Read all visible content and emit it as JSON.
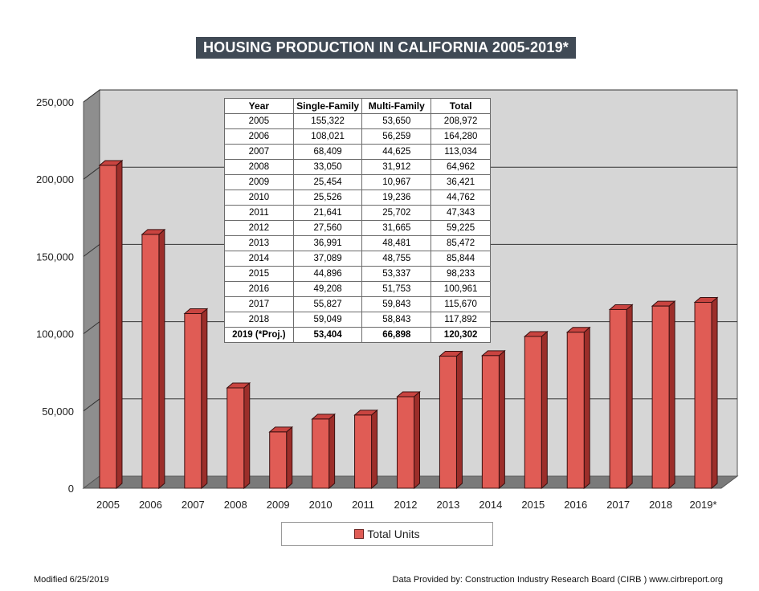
{
  "title": "HOUSING PRODUCTION IN CALIFORNIA 2005-2019*",
  "chart_data": {
    "type": "bar",
    "title": "HOUSING PRODUCTION IN CALIFORNIA 2005-2019*",
    "categories": [
      "2005",
      "2006",
      "2007",
      "2008",
      "2009",
      "2010",
      "2011",
      "2012",
      "2013",
      "2014",
      "2015",
      "2016",
      "2017",
      "2018",
      "2019*"
    ],
    "series": [
      {
        "name": "Total Units",
        "values": [
          208972,
          164280,
          113034,
          64962,
          36421,
          44762,
          47343,
          59225,
          85472,
          85844,
          98233,
          100961,
          115670,
          117892,
          120302
        ]
      }
    ],
    "ylim": [
      0,
      250000
    ],
    "yticks": [
      0,
      50000,
      100000,
      150000,
      200000,
      250000
    ],
    "ytick_labels": [
      "0",
      "50,000",
      "100,000",
      "150,000",
      "200,000",
      "250,000"
    ],
    "grid": true,
    "legend_position": "bottom",
    "colors": {
      "bar_front": "#e05c55",
      "bar_side": "#9c2e2a",
      "bar_top": "#c94440",
      "wall": "#d6d6d6",
      "wall_left": "#8e8e8e",
      "floor": "#7a7a7a"
    }
  },
  "table": {
    "headers": [
      "Year",
      "Single-Family",
      "Multi-Family",
      "Total"
    ],
    "rows": [
      [
        "2005",
        "155,322",
        "53,650",
        "208,972"
      ],
      [
        "2006",
        "108,021",
        "56,259",
        "164,280"
      ],
      [
        "2007",
        "68,409",
        "44,625",
        "113,034"
      ],
      [
        "2008",
        "33,050",
        "31,912",
        "64,962"
      ],
      [
        "2009",
        "25,454",
        "10,967",
        "36,421"
      ],
      [
        "2010",
        "25,526",
        "19,236",
        "44,762"
      ],
      [
        "2011",
        "21,641",
        "25,702",
        "47,343"
      ],
      [
        "2012",
        "27,560",
        "31,665",
        "59,225"
      ],
      [
        "2013",
        "36,991",
        "48,481",
        "85,472"
      ],
      [
        "2014",
        "37,089",
        "48,755",
        "85,844"
      ],
      [
        "2015",
        "44,896",
        "53,337",
        "98,233"
      ],
      [
        "2016",
        "49,208",
        "51,753",
        "100,961"
      ],
      [
        "2017",
        "55,827",
        "59,843",
        "115,670"
      ],
      [
        "2018",
        "59,049",
        "58,843",
        "117,892"
      ],
      [
        "2019 (*Proj.)",
        "53,404",
        "66,898",
        "120,302"
      ]
    ]
  },
  "legend": {
    "label": "Total Units"
  },
  "footer": {
    "modified": "Modified 6/25/2019",
    "source": "Data Provided by: Construction Industry Research Board (CIRB ) www.cirbreport.org"
  }
}
